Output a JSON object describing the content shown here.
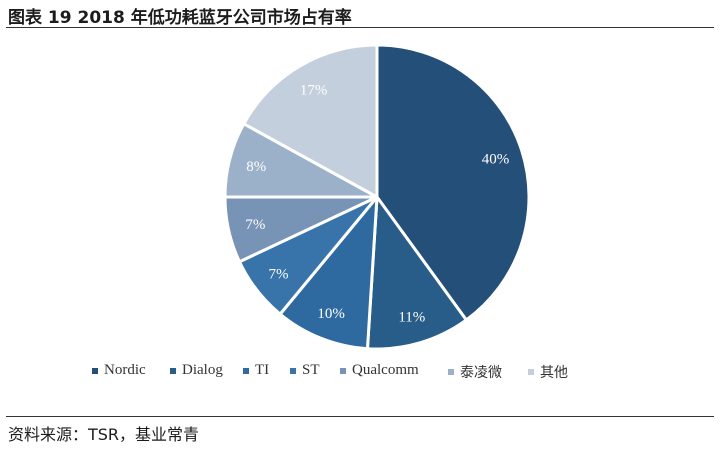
{
  "header": {
    "title": "图表 19  2018 年低功耗蓝牙公司市场占有率"
  },
  "footer": {
    "source": "资料来源：TSR，基业常青"
  },
  "chart_data": {
    "type": "pie",
    "title": "",
    "start_angle": "12 o'clock",
    "direction": "clockwise",
    "slices": [
      {
        "name": "Nordic",
        "value": 40,
        "label": "40%",
        "color": "#244f78",
        "label_color": "#ffffff"
      },
      {
        "name": "Dialog",
        "value": 11,
        "label": "11%",
        "color": "#285c89",
        "label_color": "#ffffff"
      },
      {
        "name": "TI",
        "value": 10,
        "label": "10%",
        "color": "#2e6aa0",
        "label_color": "#ffffff"
      },
      {
        "name": "ST",
        "value": 7,
        "label": "7%",
        "color": "#3873aa",
        "label_color": "#ffffff"
      },
      {
        "name": "Qualcomm",
        "value": 7,
        "label": "7%",
        "color": "#7793b5",
        "label_color": "#ffffff"
      },
      {
        "name": "泰凌微",
        "value": 8,
        "label": "8%",
        "color": "#9bb0c9",
        "label_color": "#ffffff"
      },
      {
        "name": "其他",
        "value": 17,
        "label": "17%",
        "color": "#c4cfde",
        "label_color": "#ffffff"
      }
    ],
    "legend": {
      "position": "bottom"
    }
  }
}
